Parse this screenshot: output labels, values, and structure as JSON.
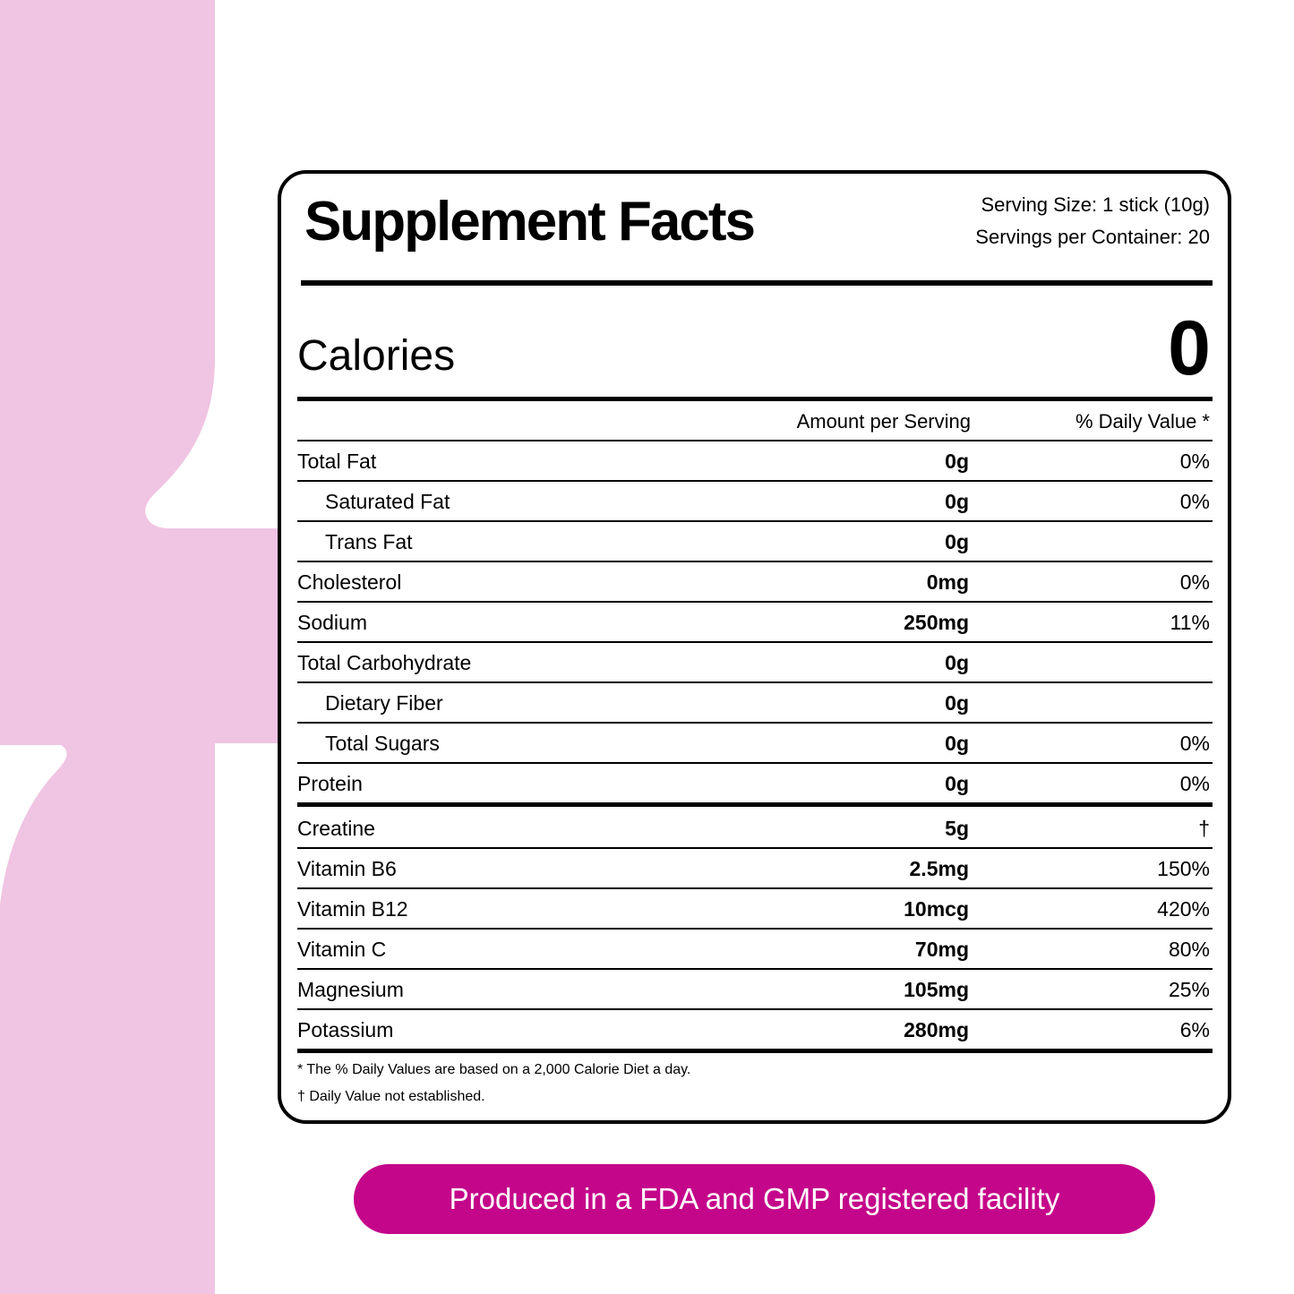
{
  "header": {
    "title": "Supplement Facts",
    "serving_size": "Serving Size: 1 stick (10g)",
    "servings_per_container": "Servings per Container: 20"
  },
  "calories": {
    "label": "Calories",
    "value": "0"
  },
  "columns": {
    "amount": "Amount per Serving",
    "daily_value": "% Daily Value *"
  },
  "nutrients": [
    {
      "name": "Total Fat",
      "amount": "0g",
      "dv": "0%",
      "subrows": [
        {
          "name": "Saturated Fat",
          "amount": "0g",
          "dv": "0%"
        },
        {
          "name": "Trans Fat",
          "amount": "0g",
          "dv": null
        }
      ]
    },
    {
      "name": "Cholesterol",
      "amount": "0mg",
      "dv": "0%"
    },
    {
      "name": "Sodium",
      "amount": "250mg",
      "dv": "11%"
    },
    {
      "name": "Total Carbohydrate",
      "amount": "0g",
      "dv": null,
      "subrows": [
        {
          "name": "Dietary Fiber",
          "amount": "0g",
          "dv": null
        },
        {
          "name": "Total Sugars",
          "amount": "0g",
          "dv": "0%"
        }
      ]
    },
    {
      "name": "Protein",
      "amount": "0g",
      "dv": "0%"
    }
  ],
  "ingredients": [
    {
      "name": "Creatine",
      "amount": "5g",
      "dv": "†"
    },
    {
      "name": "Vitamin B6",
      "amount": "2.5mg",
      "dv": "150%"
    },
    {
      "name": "Vitamin B12",
      "amount": "10mcg",
      "dv": "420%"
    },
    {
      "name": "Vitamin C",
      "amount": "70mg",
      "dv": "80%"
    },
    {
      "name": "Magnesium",
      "amount": "105mg",
      "dv": "25%"
    },
    {
      "name": "Potassium",
      "amount": "280mg",
      "dv": "6%"
    }
  ],
  "footnotes": [
    "* The % Daily Values are based on a 2,000 Calorie Diet a day.",
    "† Daily Value not established."
  ],
  "banner": "Produced in a FDA and GMP registered facility"
}
